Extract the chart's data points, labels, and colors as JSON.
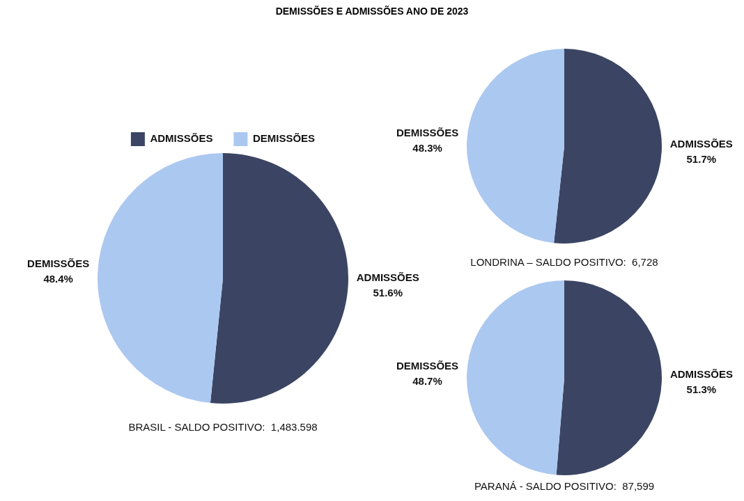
{
  "chart_data": [
    {
      "type": "pie",
      "title": "DEMISSÕES E ADMISSÕES ANO DE 2023",
      "categories": [
        "ADMISSÕES",
        "DEMISSÕES"
      ],
      "values": [
        51.6,
        48.4
      ],
      "value_labels": [
        "51.6%",
        "48.4%"
      ],
      "colors": [
        "#3b4563",
        "#abc8f0"
      ],
      "legend": "top",
      "annotations": [
        "BRASIL - SALDO POSITIVO:  1,483.598"
      ]
    },
    {
      "type": "pie",
      "categories": [
        "ADMISSÕES",
        "DEMISSÕES"
      ],
      "values": [
        51.7,
        48.3
      ],
      "value_labels": [
        "51.7%",
        "48.3%"
      ],
      "colors": [
        "#3b4563",
        "#abc8f0"
      ],
      "annotations": [
        "LONDRINA – SALDO POSITIVO:  6,728"
      ]
    },
    {
      "type": "pie",
      "categories": [
        "ADMISSÕES",
        "DEMISSÕES"
      ],
      "values": [
        51.3,
        48.7
      ],
      "value_labels": [
        "51.3%",
        "48.7%"
      ],
      "colors": [
        "#3b4563",
        "#abc8f0"
      ],
      "annotations": [
        "PARANÁ - SALDO POSITIVO:  87,599"
      ]
    }
  ]
}
